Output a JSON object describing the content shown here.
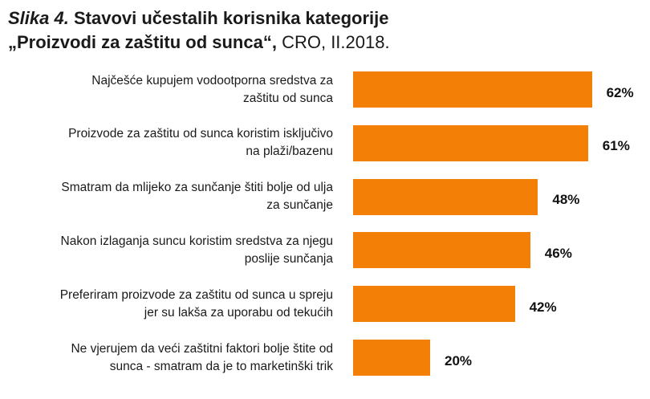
{
  "title": {
    "label": "Slika 4.",
    "line1": "Stavovi učestalih korisnika kategorije",
    "line2": "„Proizvodi za zaštitu od sunca“,",
    "suffix": "CRO, II.2018."
  },
  "chart_data": {
    "type": "bar",
    "orientation": "horizontal",
    "categories": [
      [
        "Najčešće kupujem vodootporna sredstva za",
        "zaštitu od sunca"
      ],
      [
        "Proizvode za zaštitu od sunca koristim isključivo",
        "na plaži/bazenu"
      ],
      [
        "Smatram da mlijeko za sunčanje štiti bolje od ulja",
        "za sunčanje"
      ],
      [
        "Nakon izlaganja suncu koristim sredstva za njegu",
        "poslije sunčanja"
      ],
      [
        "Preferiram proizvode za zaštitu od sunca u spreju",
        "jer su lakša za uporabu od tekućih"
      ],
      [
        "Ne vjerujem da veći zaštitni faktori bolje štite od",
        "sunca - smatram da je to marketinški trik"
      ]
    ],
    "values": [
      62,
      61,
      48,
      46,
      42,
      20
    ],
    "value_labels": [
      "62%",
      "61%",
      "48%",
      "46%",
      "42%",
      "20%"
    ],
    "bar_color": "#f47f06",
    "grid": false,
    "legend": false
  }
}
